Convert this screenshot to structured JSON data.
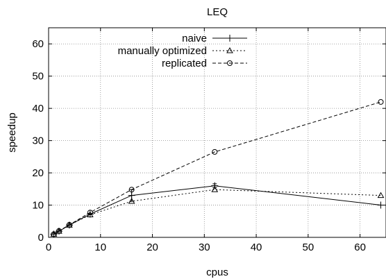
{
  "chart_data": {
    "type": "line",
    "title": "LEQ",
    "xlabel": "cpus",
    "ylabel": "speedup",
    "xlim": [
      0,
      65
    ],
    "ylim": [
      0,
      65
    ],
    "xticks": [
      0,
      10,
      20,
      30,
      40,
      50,
      60
    ],
    "yticks": [
      0,
      10,
      20,
      30,
      40,
      50,
      60
    ],
    "grid": true,
    "legend_position": "top-right",
    "series": [
      {
        "name": "naive",
        "marker": "plus",
        "line_style": "solid",
        "color": "#000000",
        "x": [
          1,
          2,
          4,
          8,
          16,
          32,
          64
        ],
        "y": [
          1.0,
          1.9,
          3.8,
          7.2,
          13.0,
          16.0,
          10.0
        ],
        "errors": [
          0,
          0,
          0,
          0,
          1.8,
          0.6,
          0
        ]
      },
      {
        "name": "manually optimized",
        "marker": "triangle",
        "line_style": "dotted",
        "color": "#000000",
        "x": [
          1,
          2,
          4,
          8,
          16,
          32,
          64
        ],
        "y": [
          1.0,
          1.9,
          3.8,
          7.0,
          11.2,
          14.8,
          13.0
        ],
        "errors": [
          0,
          0,
          0,
          0,
          0,
          0,
          0
        ]
      },
      {
        "name": "replicated",
        "marker": "circle",
        "line_style": "dashed",
        "color": "#000000",
        "x": [
          1,
          2,
          4,
          8,
          16,
          32,
          64
        ],
        "y": [
          1.0,
          2.0,
          3.9,
          7.7,
          14.8,
          26.5,
          42.0
        ],
        "errors": [
          0,
          0,
          0,
          0,
          0,
          0,
          0
        ]
      }
    ]
  }
}
